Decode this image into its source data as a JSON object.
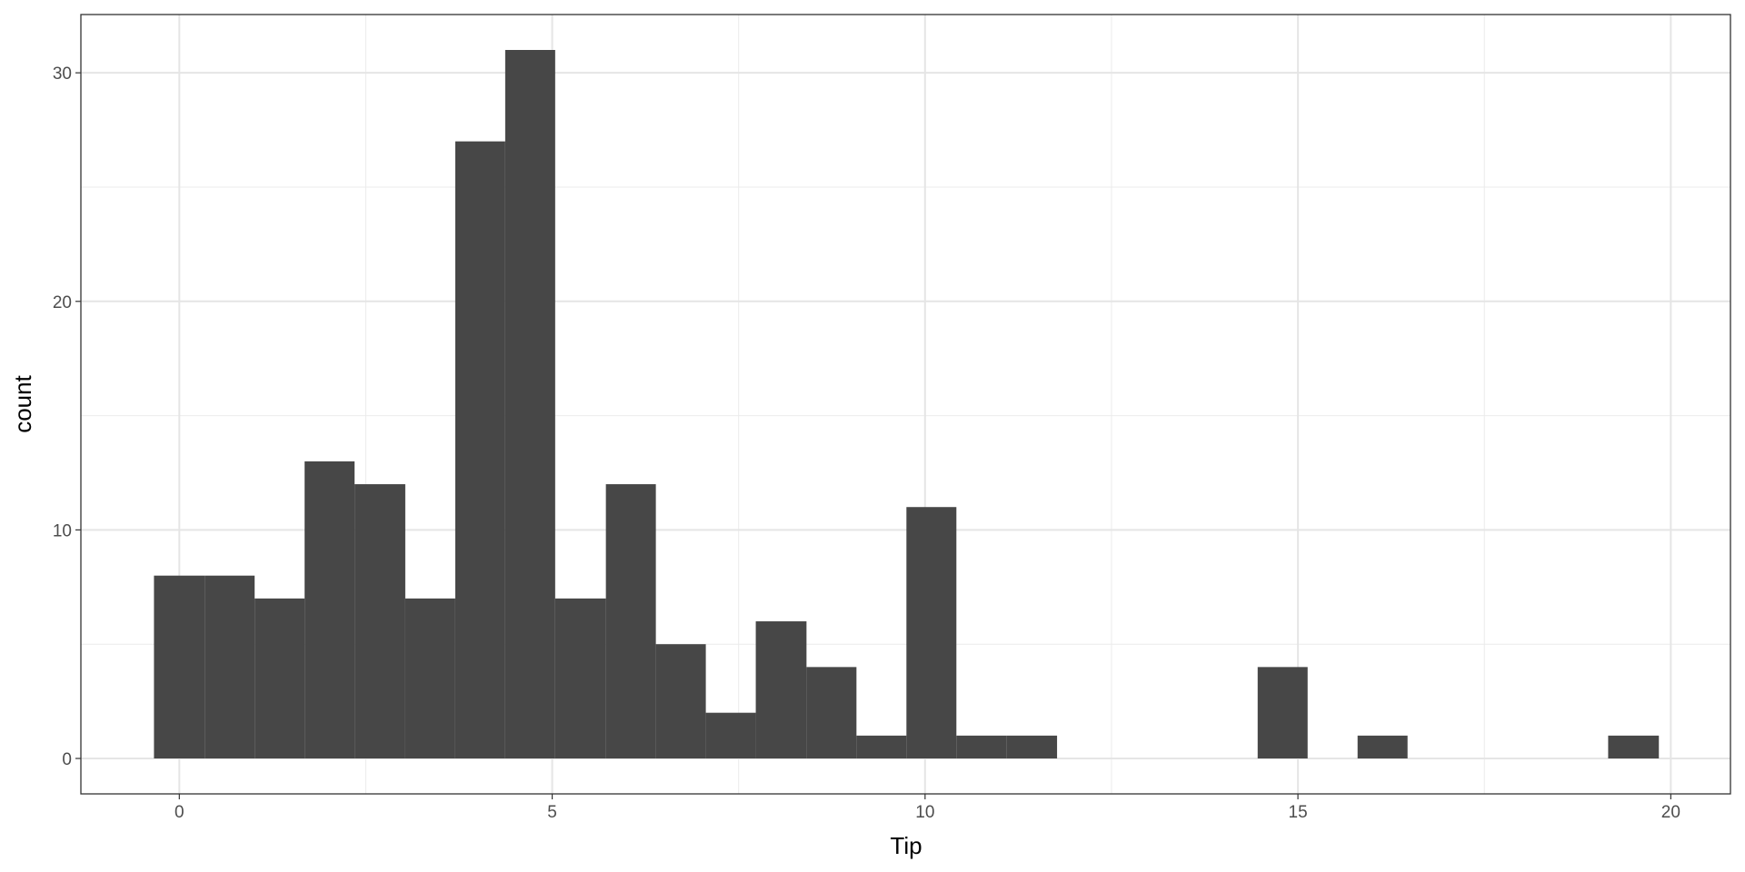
{
  "chart_data": {
    "type": "histogram",
    "x_label": "Tip",
    "y_label": "count",
    "bins": [
      -0.34,
      0.34,
      1.01,
      1.68,
      2.35,
      3.03,
      3.7,
      4.37,
      5.04,
      5.72,
      6.39,
      7.06,
      7.73,
      8.41,
      9.08,
      9.75,
      10.42,
      11.09,
      11.77,
      12.44,
      13.11,
      13.78,
      14.46,
      15.13,
      15.8,
      16.47,
      17.15,
      17.82,
      18.49,
      19.16,
      19.84
    ],
    "values": [
      8,
      8,
      7,
      13,
      12,
      7,
      27,
      31,
      7,
      12,
      5,
      2,
      6,
      4,
      1,
      11,
      1,
      1,
      0,
      0,
      0,
      0,
      4,
      0,
      1,
      0,
      0,
      0,
      0,
      1
    ],
    "color": "#474747",
    "xlim": [
      -1.32,
      20.8
    ],
    "xticks": [
      0,
      5,
      10,
      15,
      20
    ],
    "ylim": [
      -1.55,
      32.55
    ],
    "yticks": [
      0,
      10,
      20,
      30
    ],
    "grid": true
  }
}
